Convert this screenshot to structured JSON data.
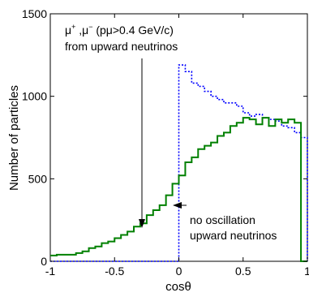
{
  "chart_data": {
    "type": "line",
    "title": "",
    "xlabel": "cosθ",
    "ylabel": "Number of particles",
    "xlim": [
      -1,
      1
    ],
    "ylim": [
      0,
      1500
    ],
    "x_ticks": [
      "-1",
      "-0.5",
      "0",
      "0.5",
      "1"
    ],
    "y_ticks": [
      "0",
      "500",
      "1000",
      "1500"
    ],
    "grid": false,
    "legend": "none",
    "bin_edges": [
      -1.0,
      -0.95,
      -0.9,
      -0.85,
      -0.8,
      -0.75,
      -0.7,
      -0.65,
      -0.6,
      -0.55,
      -0.5,
      -0.45,
      -0.4,
      -0.35,
      -0.3,
      -0.25,
      -0.2,
      -0.15,
      -0.1,
      -0.05,
      0.0,
      0.05,
      0.1,
      0.15,
      0.2,
      0.25,
      0.3,
      0.35,
      0.4,
      0.45,
      0.5,
      0.55,
      0.6,
      0.65,
      0.7,
      0.75,
      0.8,
      0.85,
      0.9,
      0.95,
      1.0
    ],
    "series": [
      {
        "style": "solid",
        "color": "#008000",
        "values": [
          35,
          40,
          40,
          40,
          50,
          60,
          80,
          90,
          110,
          120,
          140,
          160,
          180,
          210,
          230,
          280,
          310,
          340,
          400,
          470,
          520,
          600,
          630,
          680,
          700,
          720,
          760,
          780,
          820,
          840,
          870,
          860,
          830,
          870,
          820,
          860,
          840,
          860,
          840,
          0
        ]
      },
      {
        "style": "dotted",
        "color": "#0000ff",
        "values": [
          0,
          0,
          0,
          0,
          0,
          0,
          0,
          0,
          0,
          0,
          0,
          0,
          0,
          0,
          0,
          0,
          0,
          0,
          0,
          0,
          1190,
          1150,
          1080,
          1060,
          1030,
          1000,
          980,
          960,
          960,
          940,
          900,
          880,
          890,
          870,
          860,
          850,
          820,
          810,
          780,
          750
        ]
      }
    ],
    "annotations": {
      "line1_mu": "μ",
      "line1_plus": "+",
      "line1_comma": " ,μ",
      "line1_minus": "−",
      "line1_rest": "  (pμ>0.4 GeV/c)",
      "line2": "from upward neutrinos",
      "line3": "no oscillation",
      "line4": "upward neutrinos"
    }
  }
}
